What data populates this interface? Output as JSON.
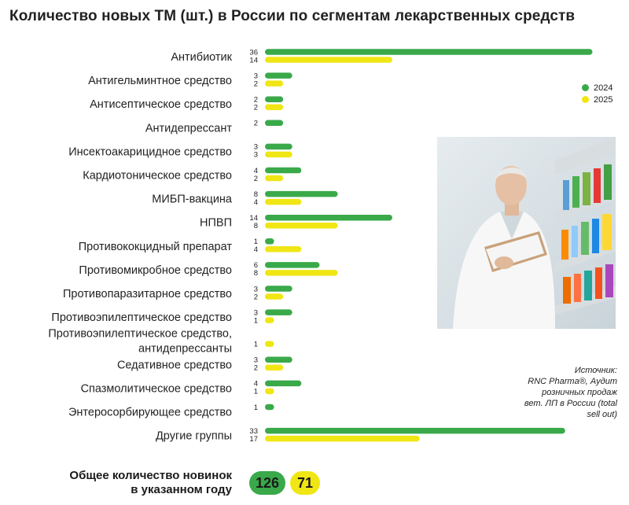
{
  "title": "Количество новых ТМ (шт.) в России по сегментам лекарственных средств",
  "colors": {
    "s2024": "#3aa94a",
    "s2025": "#f0e614"
  },
  "chart_data": {
    "type": "bar",
    "orientation": "horizontal",
    "categories": [
      "Антибиотик",
      "Антигельминтное средство",
      "Антисептическое средство",
      "Антидепрессант",
      "Инсектоакарицидное средство",
      "Кардиотоническое средство",
      "МИБП-вакцина",
      "НПВП",
      "Противококцидный препарат",
      "Противомикробное средство",
      "Противопаразитарное средство",
      "Противоэпилептическое средство",
      "Противоэпилептическое средство,\nантидепрессанты",
      "Седативное средство",
      "Спазмолитическое средство",
      "Энтеросорбирующее средство",
      "Другие группы"
    ],
    "series": [
      {
        "name": "2024",
        "values": [
          36,
          3,
          2,
          2,
          3,
          4,
          8,
          14,
          1,
          6,
          3,
          3,
          null,
          3,
          4,
          1,
          33
        ]
      },
      {
        "name": "2025",
        "values": [
          14,
          2,
          2,
          null,
          3,
          2,
          4,
          8,
          4,
          8,
          2,
          1,
          1,
          2,
          1,
          null,
          17
        ]
      }
    ],
    "legend_position": "right",
    "grid": false
  },
  "totals": {
    "label_line1": "Общее количество новинок",
    "label_line2": "в указанном году",
    "value_2024": "126",
    "value_2025": "71"
  },
  "source": {
    "line1": "Источник:",
    "line2": "RNC Pharma®, Аудит",
    "line3": "розничных продаж",
    "line4": "вет. ЛП в России (total",
    "line5": "sell out)"
  },
  "photo": {
    "icon": "pharmacist-photo"
  }
}
